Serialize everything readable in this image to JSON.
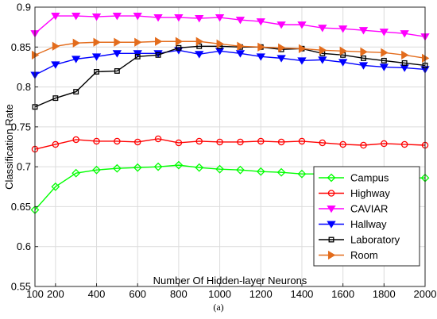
{
  "caption": "(a)",
  "chart_data": {
    "type": "line",
    "xlabel": "Number Of Hidden-layer Neurons",
    "ylabel": "Classification Rate",
    "xlim": [
      100,
      2000
    ],
    "ylim": [
      0.55,
      0.9
    ],
    "xticks": [
      100,
      200,
      400,
      600,
      800,
      1000,
      1200,
      1400,
      1600,
      1800,
      2000
    ],
    "yticks": [
      0.55,
      0.6,
      0.65,
      0.7,
      0.75,
      0.8,
      0.85,
      0.9
    ],
    "ytick_labels": [
      "0.55",
      "0.6",
      "0.65",
      "0.7",
      "0.75",
      "0.8",
      "0.85",
      "0.9"
    ],
    "grid": true,
    "legend_position": "bottom-right",
    "x": [
      100,
      200,
      300,
      400,
      500,
      600,
      700,
      800,
      900,
      1000,
      1100,
      1200,
      1300,
      1400,
      1500,
      1600,
      1700,
      1800,
      1900,
      2000
    ],
    "series": [
      {
        "name": "Campus",
        "color": "#00ff00",
        "marker": "diamond",
        "values": [
          0.646,
          0.675,
          0.692,
          0.696,
          0.698,
          0.699,
          0.7,
          0.702,
          0.699,
          0.697,
          0.696,
          0.694,
          0.693,
          0.691,
          0.691,
          0.69,
          0.688,
          0.686,
          0.686,
          0.686
        ]
      },
      {
        "name": "Highway",
        "color": "#ff0000",
        "marker": "circle",
        "values": [
          0.722,
          0.728,
          0.734,
          0.732,
          0.732,
          0.731,
          0.735,
          0.73,
          0.732,
          0.731,
          0.731,
          0.732,
          0.731,
          0.732,
          0.73,
          0.728,
          0.727,
          0.729,
          0.728,
          0.727
        ]
      },
      {
        "name": "CAVIAR",
        "color": "#ff00ff",
        "marker": "triangle-down",
        "values": [
          0.867,
          0.889,
          0.889,
          0.888,
          0.889,
          0.889,
          0.887,
          0.887,
          0.886,
          0.887,
          0.884,
          0.882,
          0.878,
          0.878,
          0.874,
          0.873,
          0.871,
          0.869,
          0.867,
          0.863
        ]
      },
      {
        "name": "Hallway",
        "color": "#0000ff",
        "marker": "triangle-down",
        "values": [
          0.815,
          0.828,
          0.835,
          0.838,
          0.842,
          0.842,
          0.842,
          0.846,
          0.841,
          0.845,
          0.842,
          0.838,
          0.836,
          0.833,
          0.834,
          0.831,
          0.827,
          0.825,
          0.824,
          0.822
        ]
      },
      {
        "name": "Laboratory",
        "color": "#000000",
        "marker": "square",
        "values": [
          0.775,
          0.786,
          0.794,
          0.819,
          0.82,
          0.838,
          0.84,
          0.849,
          0.851,
          0.851,
          0.85,
          0.85,
          0.847,
          0.848,
          0.842,
          0.84,
          0.836,
          0.833,
          0.83,
          0.827
        ]
      },
      {
        "name": "Room",
        "color": "#e36c1c",
        "marker": "triangle-right",
        "values": [
          0.84,
          0.851,
          0.855,
          0.856,
          0.856,
          0.856,
          0.857,
          0.857,
          0.857,
          0.854,
          0.851,
          0.85,
          0.849,
          0.848,
          0.846,
          0.845,
          0.844,
          0.843,
          0.84,
          0.836
        ]
      }
    ]
  }
}
